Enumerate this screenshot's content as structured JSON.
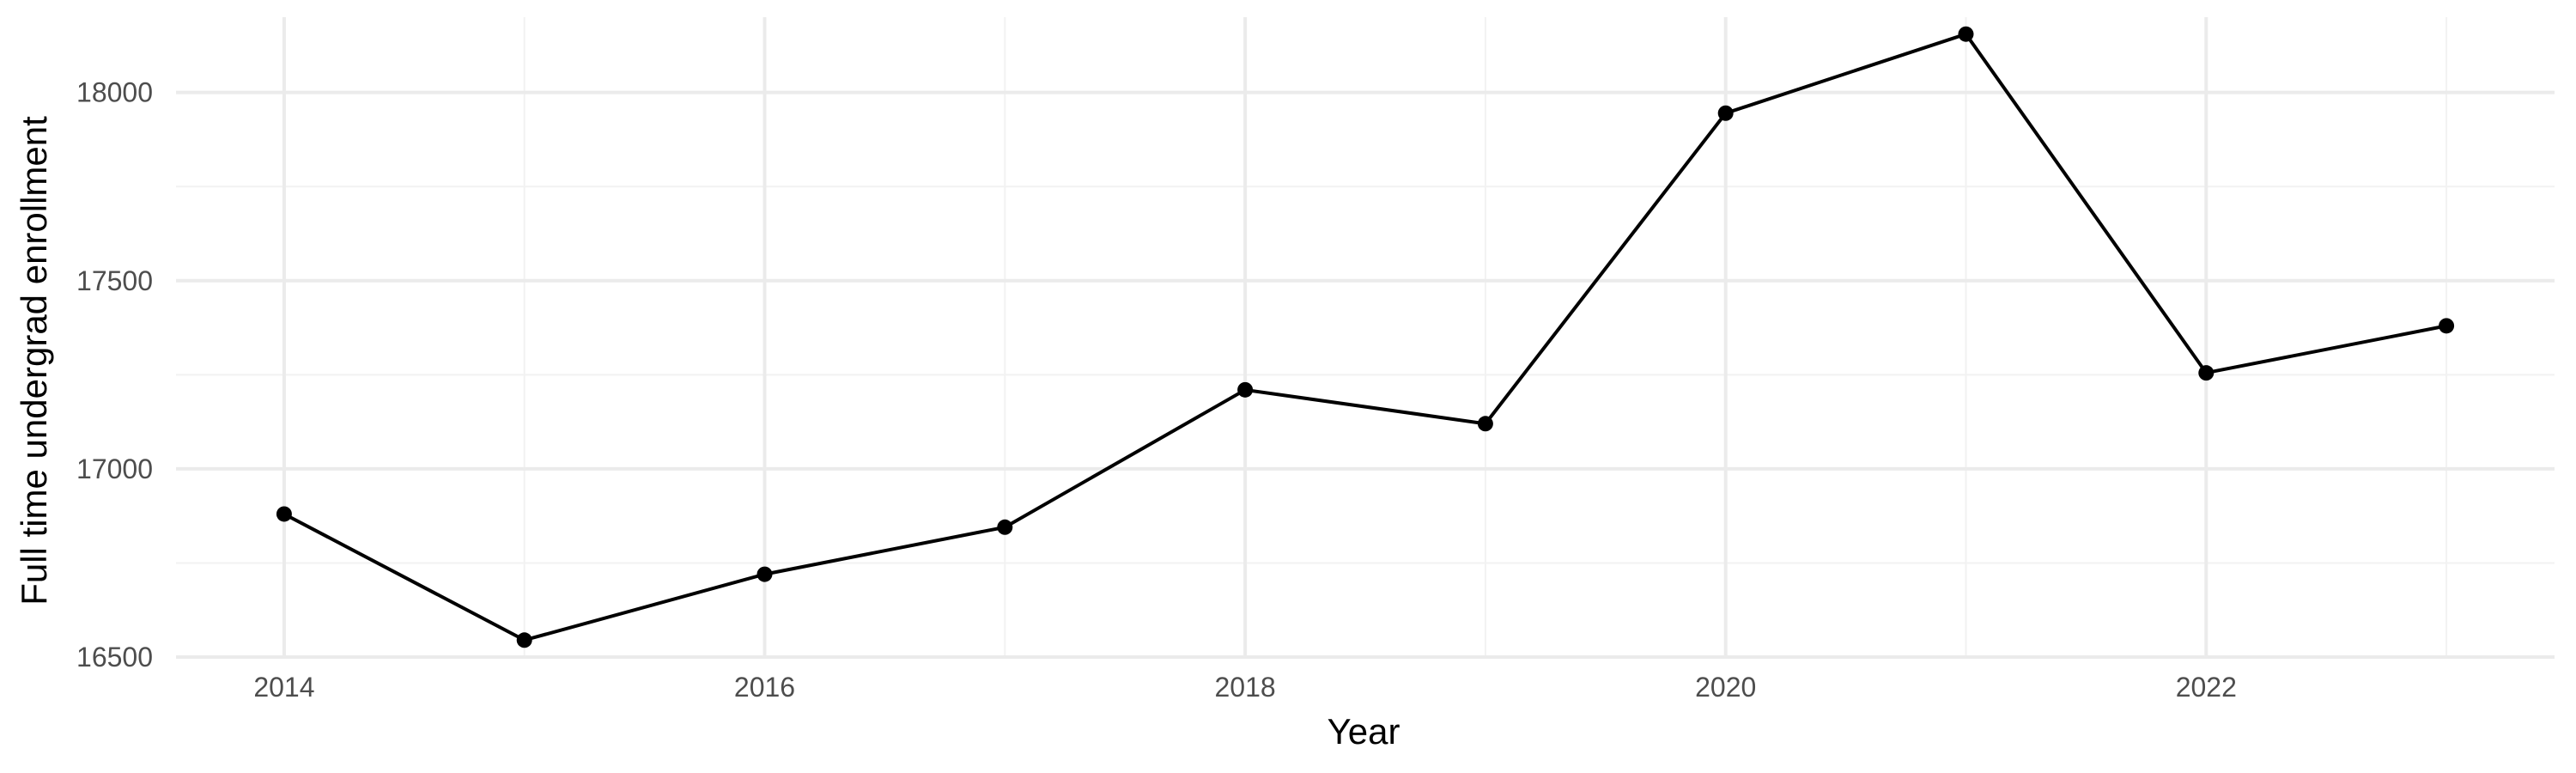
{
  "chart_data": {
    "type": "line",
    "title": "",
    "xlabel": "Year",
    "ylabel": "Full time undergrad enrollment",
    "x": [
      2014,
      2015,
      2016,
      2017,
      2018,
      2019,
      2020,
      2021,
      2022,
      2023
    ],
    "values": [
      16880,
      16545,
      16720,
      16845,
      17210,
      17120,
      17945,
      18155,
      17255,
      17380
    ],
    "xlim": [
      2013.55,
      2023.45
    ],
    "ylim": [
      16500,
      18200
    ],
    "x_ticks": [
      2014,
      2016,
      2018,
      2020,
      2022
    ],
    "x_tick_labels": [
      "2014",
      "2016",
      "2018",
      "2020",
      "2022"
    ],
    "y_ticks": [
      16500,
      17000,
      17500,
      18000
    ],
    "y_tick_labels": [
      "16500",
      "17000",
      "17500",
      "18000"
    ],
    "grid": true,
    "legend": "none",
    "colors": {
      "line": "#000000",
      "point": "#000000",
      "grid_major": "#ebebeb",
      "grid_minor": "#f2f2f2",
      "tick_text": "#4d4d4d",
      "axis_title": "#000000"
    }
  }
}
